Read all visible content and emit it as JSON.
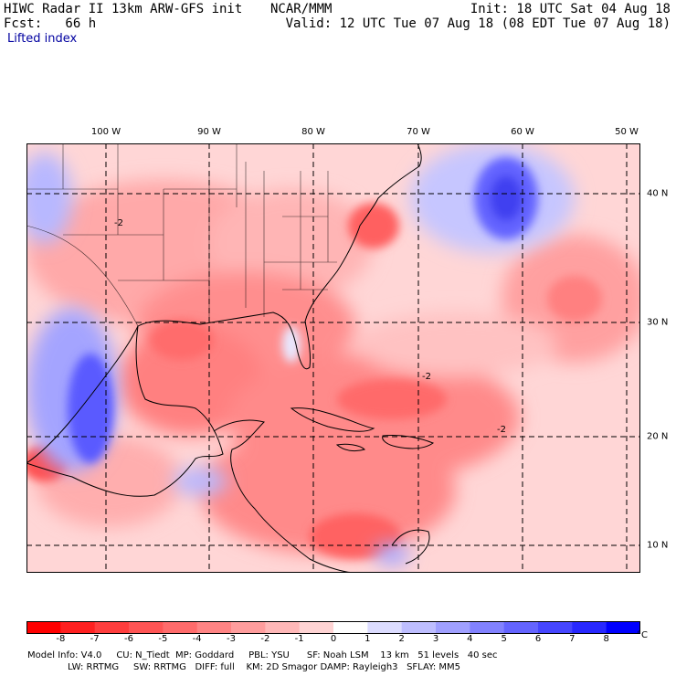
{
  "header": {
    "title": "HIWC Radar II 13km ARW-GFS init",
    "org": "NCAR/MMM",
    "init": "Init: 18 UTC Sat 04 Aug 18",
    "fcst": "Fcst:   66 h",
    "valid": "Valid: 12 UTC Tue 07 Aug 18 (08 EDT Tue 07 Aug 18)",
    "field": "Lifted index"
  },
  "map": {
    "longitude_labels": [
      "100 W",
      "90 W",
      "80 W",
      "70 W",
      "60 W",
      "50 W"
    ],
    "latitude_labels": [
      "40 N",
      "30 N",
      "20 N",
      "10 N"
    ],
    "contour_label": "-2"
  },
  "colorbar": {
    "labels": [
      "-8",
      "-7",
      "-6",
      "-5",
      "-4",
      "-3",
      "-2",
      "-1",
      "0",
      "1",
      "2",
      "3",
      "4",
      "5",
      "6",
      "7",
      "8"
    ],
    "unit": "°C",
    "colors": [
      "#ff0000",
      "#ff2020",
      "#ff3e3e",
      "#ff5555",
      "#ff6b6b",
      "#ff8484",
      "#ff9d9d",
      "#ffb8b8",
      "#ffd4d4",
      "#ffffff",
      "#dcdcff",
      "#bebeff",
      "#a0a0ff",
      "#8282ff",
      "#6464ff",
      "#4646ff",
      "#2828ff",
      "#0000ff"
    ]
  },
  "footer": {
    "line1": "Model Info: V4.0     CU: N_Tiedt  MP: Goddard     PBL: YSU      SF: Noah LSM    13 km   51 levels   40 sec",
    "line2": "LW: RRTMG     SW: RRTMG   DIFF: full    KM: 2D Smagor DAMP: Rayleigh3   SFLAY: MM5"
  }
}
